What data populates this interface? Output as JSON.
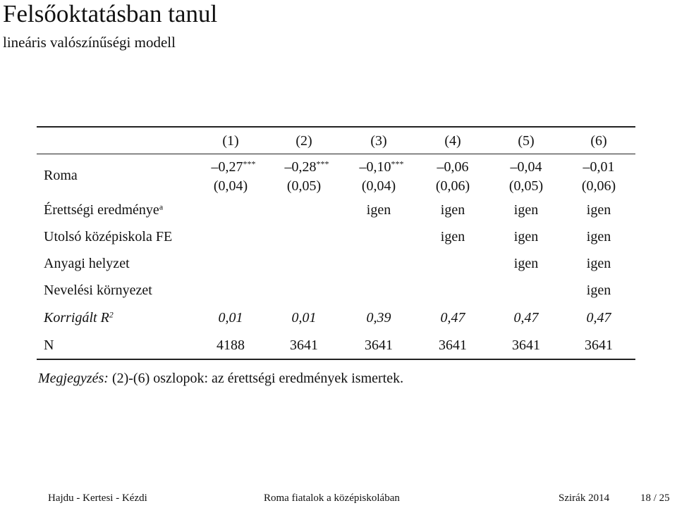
{
  "header": {
    "title": "Felsőoktatásban tanul",
    "subtitle": "lineáris valószínűségi modell"
  },
  "table": {
    "columns": [
      "(1)",
      "(2)",
      "(3)",
      "(4)",
      "(5)",
      "(6)"
    ],
    "roma": {
      "label": "Roma",
      "cells": [
        {
          "coef": "–0,27",
          "stars": "***",
          "se": "(0,04)"
        },
        {
          "coef": "–0,28",
          "stars": "***",
          "se": "(0,05)"
        },
        {
          "coef": "–0,10",
          "stars": "***",
          "se": "(0,04)"
        },
        {
          "coef": "–0,06",
          "se": "(0,06)"
        },
        {
          "coef": "–0,04",
          "se": "(0,05)"
        },
        {
          "coef": "–0,01",
          "se": "(0,06)"
        }
      ]
    },
    "rows": [
      {
        "label": "Érettségi eredménye",
        "label_sup": "a",
        "cells": [
          null,
          null,
          "igen",
          "igen",
          "igen",
          "igen"
        ]
      },
      {
        "label": "Utolsó középiskola FE",
        "cells": [
          null,
          null,
          null,
          "igen",
          "igen",
          "igen"
        ]
      },
      {
        "label": "Anyagi helyzet",
        "cells": [
          null,
          null,
          null,
          null,
          "igen",
          "igen"
        ]
      },
      {
        "label": "Nevelési környezet",
        "cells": [
          null,
          null,
          null,
          null,
          null,
          "igen"
        ]
      },
      {
        "label": "Korrigált R",
        "label_sup": "2",
        "italic": true,
        "cells": [
          "0,01",
          "0,01",
          "0,39",
          "0,47",
          "0,47",
          "0,47"
        ]
      },
      {
        "label": "N",
        "cells": [
          "4188",
          "3641",
          "3641",
          "3641",
          "3641",
          "3641"
        ]
      }
    ]
  },
  "note": {
    "label": "Megjegyzés:",
    "text": "(2)-(6) oszlopok: az érettségi eredmények ismertek."
  },
  "footer": {
    "authors": "Hajdu - Kertesi - Kézdi",
    "talk": "Roma fiatalok a középiskolában",
    "event": "Szirák 2014",
    "page": "18 / 25"
  }
}
